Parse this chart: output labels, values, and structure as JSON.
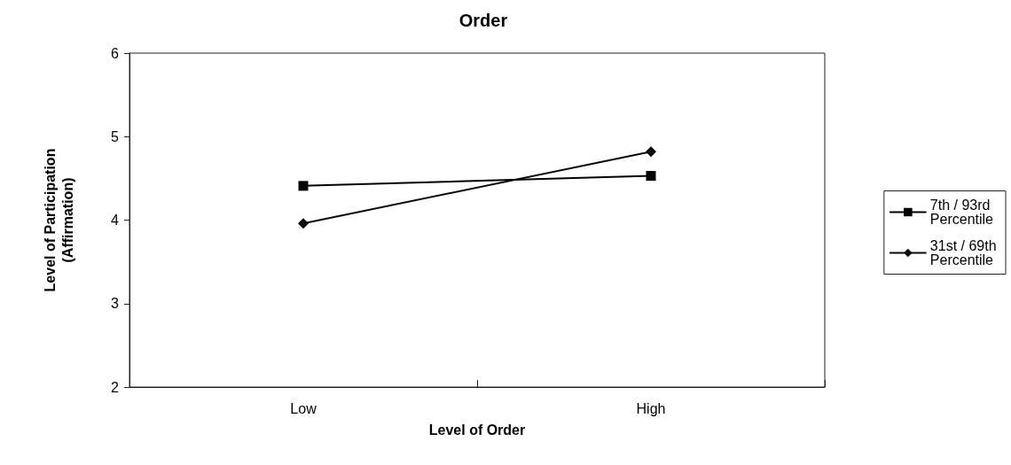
{
  "chart_data": {
    "type": "line",
    "title": "Order",
    "xlabel": "Level of Order",
    "ylabel": "Level of Participation\n(Affirmation)",
    "categories": [
      "Low",
      "High"
    ],
    "series": [
      {
        "name": "7th / 93rd Percentile",
        "color": "#000000",
        "marker": "square",
        "values": [
          4.41,
          4.53
        ]
      },
      {
        "name": "31st / 69th Percentile",
        "color": "#0a0a0a",
        "marker": "diamond",
        "values": [
          3.96,
          4.82
        ]
      }
    ],
    "ylim": [
      2,
      6
    ],
    "yticks": [
      2,
      3,
      4,
      5,
      6
    ],
    "grid": false,
    "legend": "right",
    "line_style": "solid"
  }
}
